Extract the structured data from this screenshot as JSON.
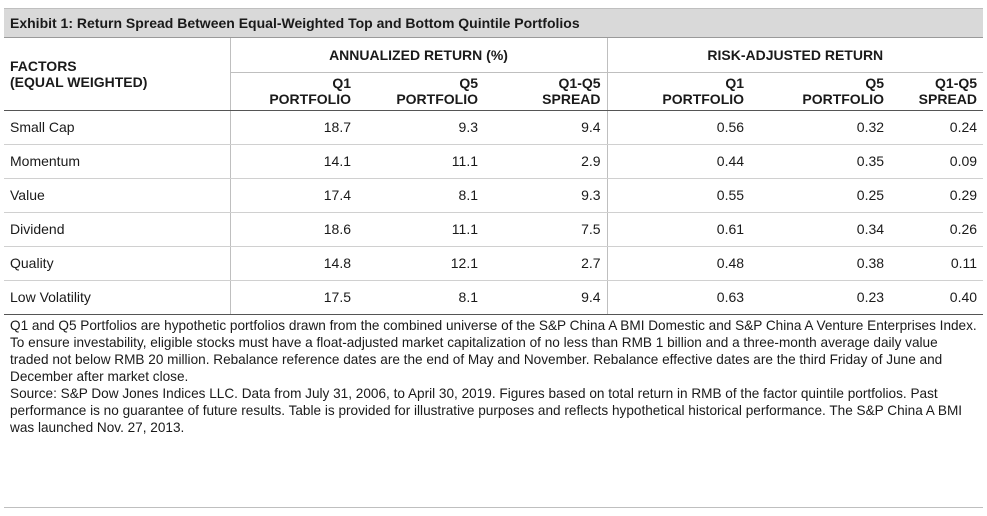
{
  "exhibit": {
    "title": "Exhibit 1: Return Spread Between Equal-Weighted Top and Bottom Quintile Portfolios"
  },
  "chart_data": {
    "type": "table",
    "title": "Exhibit 1: Return Spread Between Equal-Weighted Top and Bottom Quintile Portfolios",
    "row_header": [
      "FACTORS",
      "(EQUAL WEIGHTED)"
    ],
    "column_groups": [
      {
        "label": "ANNUALIZED RETURN (%)",
        "columns": [
          [
            "Q1",
            "PORTFOLIO"
          ],
          [
            "Q5",
            "PORTFOLIO"
          ],
          [
            "Q1-Q5",
            "SPREAD"
          ]
        ]
      },
      {
        "label": "RISK-ADJUSTED RETURN",
        "columns": [
          [
            "Q1",
            "PORTFOLIO"
          ],
          [
            "Q5",
            "PORTFOLIO"
          ],
          [
            "Q1-Q5",
            "SPREAD"
          ]
        ]
      }
    ],
    "rows": [
      {
        "factor": "Small Cap",
        "values": [
          "18.7",
          "9.3",
          "9.4",
          "0.56",
          "0.32",
          "0.24"
        ]
      },
      {
        "factor": "Momentum",
        "values": [
          "14.1",
          "11.1",
          "2.9",
          "0.44",
          "0.35",
          "0.09"
        ]
      },
      {
        "factor": "Value",
        "values": [
          "17.4",
          "8.1",
          "9.3",
          "0.55",
          "0.25",
          "0.29"
        ]
      },
      {
        "factor": "Dividend",
        "values": [
          "18.6",
          "11.1",
          "7.5",
          "0.61",
          "0.34",
          "0.26"
        ]
      },
      {
        "factor": "Quality",
        "values": [
          "14.8",
          "12.1",
          "2.7",
          "0.48",
          "0.38",
          "0.11"
        ]
      },
      {
        "factor": "Low Volatility",
        "values": [
          "17.5",
          "8.1",
          "9.4",
          "0.63",
          "0.23",
          "0.40"
        ]
      }
    ]
  },
  "notes": {
    "methodology": "Q1 and Q5 Portfolios are hypothetic portfolios drawn from the combined universe of the S&P China A BMI Domestic and S&P China A Venture Enterprises Index. To ensure investability, eligible stocks must have a float-adjusted market capitalization of no less than RMB 1 billion and a three-month average daily value traded not below RMB 20 million. Rebalance reference dates are the end of May and November. Rebalance effective dates are the third Friday of June and December after market close.",
    "source": "Source: S&P Dow Jones Indices LLC. Data from July 31, 2006, to April 30, 2019. Figures based on total return in RMB of the factor quintile portfolios. Past performance is no guarantee of future results. Table is provided for illustrative purposes and reflects hypothetical historical performance. The S&P China A BMI was launched Nov. 27, 2013."
  }
}
